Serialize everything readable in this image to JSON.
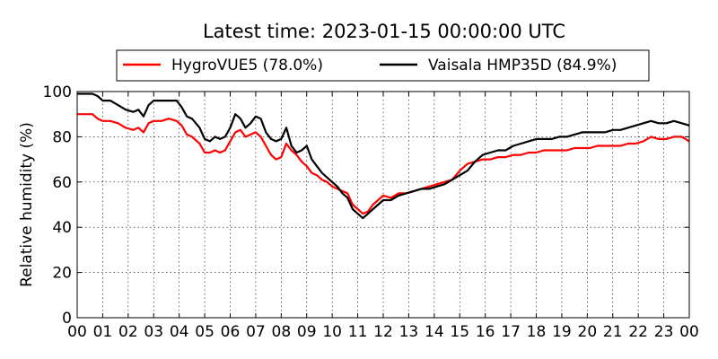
{
  "chart_data": {
    "type": "line",
    "title": "Latest time: 2023-01-15 00:00:00 UTC",
    "xlabel": "",
    "ylabel": "Relative humidity (%)",
    "xlim": [
      0,
      24
    ],
    "ylim": [
      0,
      100
    ],
    "xticks": [
      "00",
      "01",
      "02",
      "03",
      "04",
      "05",
      "06",
      "07",
      "08",
      "09",
      "10",
      "11",
      "12",
      "13",
      "14",
      "15",
      "16",
      "17",
      "18",
      "19",
      "20",
      "21",
      "22",
      "23",
      "00"
    ],
    "yticks": [
      0,
      20,
      40,
      60,
      80,
      100
    ],
    "grid": true,
    "legend_position": "top",
    "series": [
      {
        "name": "HygroVUE5 (78.0%)",
        "color": "#ff0000",
        "x": [
          0,
          0.3,
          0.6,
          0.8,
          1.0,
          1.3,
          1.6,
          1.9,
          2.2,
          2.4,
          2.6,
          2.8,
          3.0,
          3.3,
          3.6,
          3.9,
          4.1,
          4.3,
          4.5,
          4.8,
          5.0,
          5.2,
          5.4,
          5.6,
          5.8,
          6.0,
          6.2,
          6.4,
          6.6,
          6.8,
          7.0,
          7.2,
          7.4,
          7.6,
          7.8,
          8.0,
          8.2,
          8.4,
          8.6,
          8.8,
          9.0,
          9.2,
          9.4,
          9.6,
          9.8,
          10.0,
          10.2,
          10.4,
          10.6,
          10.8,
          11.0,
          11.2,
          11.4,
          11.6,
          11.8,
          12.0,
          12.3,
          12.6,
          12.9,
          13.2,
          13.5,
          13.8,
          14.1,
          14.4,
          14.7,
          15.0,
          15.3,
          15.6,
          15.9,
          16.2,
          16.5,
          16.8,
          17.1,
          17.4,
          17.7,
          18.0,
          18.3,
          18.6,
          18.9,
          19.2,
          19.5,
          19.8,
          20.1,
          20.4,
          20.7,
          21.0,
          21.3,
          21.6,
          21.9,
          22.2,
          22.5,
          22.8,
          23.1,
          23.4,
          23.7,
          24.0
        ],
        "values": [
          90,
          90,
          90,
          88,
          87,
          87,
          86,
          84,
          83,
          84,
          82,
          86,
          87,
          87,
          88,
          87,
          85,
          81,
          80,
          77,
          73,
          73,
          74,
          73,
          74,
          78,
          82,
          83,
          80,
          81,
          82,
          80,
          76,
          72,
          70,
          71,
          77,
          74,
          72,
          69,
          67,
          64,
          63,
          61,
          60,
          58,
          57,
          56,
          55,
          50,
          48,
          46,
          47,
          50,
          52,
          54,
          53,
          55,
          55,
          56,
          57,
          58,
          59,
          60,
          61,
          65,
          68,
          69,
          70,
          70,
          71,
          71,
          72,
          72,
          73,
          73,
          74,
          74,
          74,
          74,
          75,
          75,
          75,
          76,
          76,
          76,
          76,
          77,
          77,
          78,
          80,
          79,
          79,
          80,
          80,
          78
        ]
      },
      {
        "name": "Vaisala HMP35D (84.9%)",
        "color": "#000000",
        "x": [
          0,
          0.3,
          0.6,
          0.8,
          1.0,
          1.3,
          1.6,
          1.9,
          2.2,
          2.4,
          2.6,
          2.8,
          3.0,
          3.3,
          3.6,
          3.9,
          4.1,
          4.3,
          4.5,
          4.8,
          5.0,
          5.2,
          5.4,
          5.6,
          5.8,
          6.0,
          6.2,
          6.4,
          6.6,
          6.8,
          7.0,
          7.2,
          7.4,
          7.6,
          7.8,
          8.0,
          8.2,
          8.4,
          8.6,
          8.8,
          9.0,
          9.2,
          9.4,
          9.6,
          9.8,
          10.0,
          10.2,
          10.4,
          10.6,
          10.8,
          11.0,
          11.2,
          11.4,
          11.6,
          11.8,
          12.0,
          12.3,
          12.6,
          12.9,
          13.2,
          13.5,
          13.8,
          14.1,
          14.4,
          14.7,
          15.0,
          15.3,
          15.6,
          15.9,
          16.2,
          16.5,
          16.8,
          17.1,
          17.4,
          17.7,
          18.0,
          18.3,
          18.6,
          18.9,
          19.2,
          19.5,
          19.8,
          20.1,
          20.4,
          20.7,
          21.0,
          21.3,
          21.6,
          21.9,
          22.2,
          22.5,
          22.8,
          23.1,
          23.4,
          23.7,
          24.0
        ],
        "values": [
          99,
          99,
          99,
          98,
          96,
          96,
          94,
          92,
          91,
          92,
          89,
          94,
          96,
          96,
          96,
          96,
          93,
          89,
          88,
          84,
          79,
          78,
          80,
          79,
          80,
          84,
          90,
          88,
          84,
          86,
          89,
          88,
          82,
          79,
          78,
          79,
          84,
          76,
          73,
          74,
          76,
          70,
          67,
          64,
          62,
          60,
          58,
          55,
          53,
          48,
          46,
          44,
          46,
          48,
          50,
          52,
          52,
          54,
          55,
          56,
          57,
          57,
          58,
          59,
          61,
          63,
          65,
          69,
          72,
          73,
          74,
          74,
          76,
          77,
          78,
          79,
          79,
          79,
          80,
          80,
          81,
          82,
          82,
          82,
          82,
          83,
          83,
          84,
          85,
          86,
          87,
          86,
          86,
          87,
          86,
          85
        ]
      }
    ]
  }
}
